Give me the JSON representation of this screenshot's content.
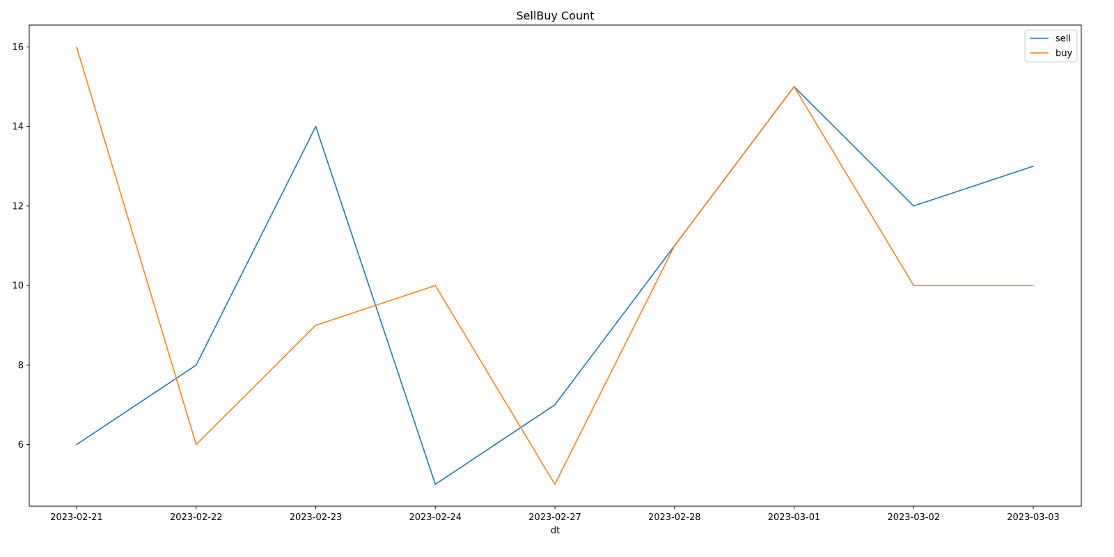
{
  "chart_data": {
    "type": "line",
    "title": "SellBuy Count",
    "xlabel": "dt",
    "ylabel": "",
    "categories": [
      "2023-02-21",
      "2023-02-22",
      "2023-02-23",
      "2023-02-24",
      "2023-02-27",
      "2023-02-28",
      "2023-03-01",
      "2023-03-02",
      "2023-03-03"
    ],
    "series": [
      {
        "name": "sell",
        "color": "#1f77b4",
        "values": [
          6,
          8,
          14,
          5,
          7,
          11,
          15,
          12,
          13
        ]
      },
      {
        "name": "buy",
        "color": "#ff7f0e",
        "values": [
          16,
          6,
          9,
          10,
          5,
          11,
          15,
          10,
          10
        ]
      }
    ],
    "ylim": [
      4.45,
      16.55
    ],
    "yticks": [
      6,
      8,
      10,
      12,
      14,
      16
    ],
    "grid": false,
    "legend_position": "top-right"
  }
}
